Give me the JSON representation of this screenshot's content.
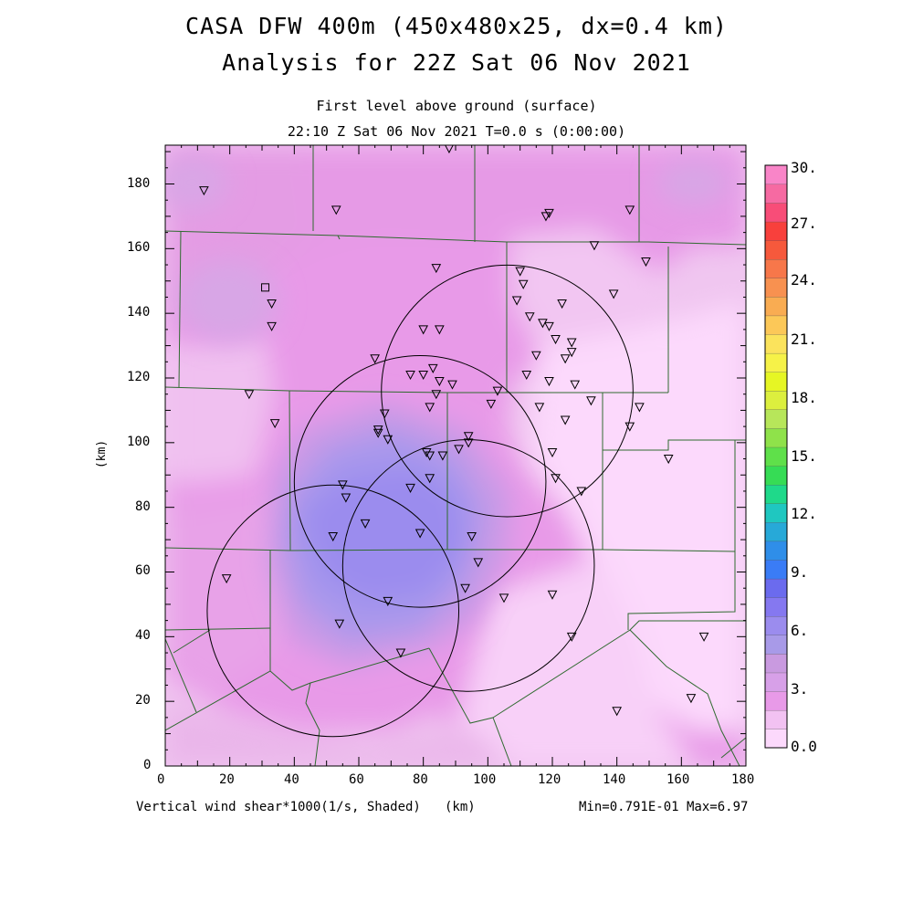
{
  "header": {
    "title_line1": "CASA DFW 400m (450x480x25, dx=0.4 km)",
    "title_line2": "Analysis for 22Z Sat 06 Nov 2021",
    "level": "First level above ground (surface)",
    "time": "22:10 Z Sat 06 Nov 2021   T=0.0 s (0:00:00)"
  },
  "axes": {
    "x_ticks": [
      "0",
      "20",
      "40",
      "60",
      "80",
      "100",
      "120",
      "140",
      "160",
      "180"
    ],
    "y_ticks": [
      "0",
      "20",
      "40",
      "60",
      "80",
      "100",
      "120",
      "140",
      "160",
      "180"
    ],
    "y_label": "(km)",
    "x_label": "(km)",
    "xlim": [
      0,
      180
    ],
    "ylim": [
      0,
      192
    ]
  },
  "footer": {
    "field_label": "Vertical wind shear*1000(1/s, Shaded)",
    "x_unit": "(km)",
    "minmax": "Min=0.791E-01 Max=6.97"
  },
  "colorbar": {
    "labels": [
      "30.",
      "27.",
      "24.",
      "21.",
      "18.",
      "15.",
      "12.",
      "9.",
      "6.",
      "3.",
      "0.0"
    ],
    "colors": [
      "#fcd9fc",
      "#f2c2f2",
      "#e89ae8",
      "#d7a0e8",
      "#c99ae0",
      "#a89ae8",
      "#9b8cee",
      "#8578f0",
      "#6b6bee",
      "#3a7cf6",
      "#2f8ee9",
      "#27a9d8",
      "#1fc7c0",
      "#1fd98a",
      "#36dc55",
      "#5fe04a",
      "#8fe24a",
      "#b7e65a",
      "#dcef3e",
      "#e6f624",
      "#f6f248",
      "#fbe35c",
      "#fcc858",
      "#f9ac52",
      "#f89150",
      "#f7774a",
      "#f6593c",
      "#f8403c",
      "#f84d78",
      "#f66aa2",
      "#f985c8"
    ]
  },
  "chart_data": {
    "type": "heatmap",
    "field": "Vertical wind shear*1000",
    "units": "1/s",
    "min": 0.0791,
    "max": 6.97,
    "xlim": [
      0,
      180
    ],
    "ylim": [
      0,
      192
    ],
    "radar_rings": [
      {
        "center": [
          106,
          116
        ],
        "radius": 39
      },
      {
        "center": [
          79,
          88
        ],
        "radius": 39
      },
      {
        "center": [
          94,
          62
        ],
        "radius": 39
      },
      {
        "center": [
          52,
          48
        ],
        "radius": 39
      }
    ],
    "stations": [
      [
        12,
        178
      ],
      [
        53,
        172
      ],
      [
        88,
        191
      ],
      [
        118,
        170
      ],
      [
        119,
        171
      ],
      [
        133,
        161
      ],
      [
        144,
        172
      ],
      [
        149,
        156
      ],
      [
        84,
        154
      ],
      [
        110,
        153
      ],
      [
        111,
        149
      ],
      [
        139,
        146
      ],
      [
        109,
        144
      ],
      [
        33,
        143
      ],
      [
        113,
        139
      ],
      [
        123,
        143
      ],
      [
        117,
        137
      ],
      [
        33,
        136
      ],
      [
        80,
        135
      ],
      [
        85,
        135
      ],
      [
        119,
        136
      ],
      [
        121,
        132
      ],
      [
        126,
        131
      ],
      [
        115,
        127
      ],
      [
        65,
        126
      ],
      [
        124,
        126
      ],
      [
        126,
        128
      ],
      [
        76,
        121
      ],
      [
        80,
        121
      ],
      [
        83,
        123
      ],
      [
        85,
        119
      ],
      [
        89,
        118
      ],
      [
        112,
        121
      ],
      [
        119,
        119
      ],
      [
        127,
        118
      ],
      [
        84,
        115
      ],
      [
        103,
        116
      ],
      [
        26,
        115
      ],
      [
        82,
        111
      ],
      [
        101,
        112
      ],
      [
        116,
        111
      ],
      [
        132,
        113
      ],
      [
        147,
        111
      ],
      [
        34,
        106
      ],
      [
        68,
        109
      ],
      [
        124,
        107
      ],
      [
        144,
        105
      ],
      [
        66,
        104
      ],
      [
        66,
        103
      ],
      [
        94,
        102
      ],
      [
        69,
        101
      ],
      [
        94,
        100
      ],
      [
        91,
        98
      ],
      [
        81,
        97
      ],
      [
        82,
        96
      ],
      [
        86,
        96
      ],
      [
        120,
        97
      ],
      [
        156,
        95
      ],
      [
        82,
        89
      ],
      [
        121,
        89
      ],
      [
        76,
        86
      ],
      [
        129,
        85
      ],
      [
        55,
        87
      ],
      [
        56,
        83
      ],
      [
        62,
        75
      ],
      [
        52,
        71
      ],
      [
        79,
        72
      ],
      [
        95,
        71
      ],
      [
        97,
        63
      ],
      [
        19,
        58
      ],
      [
        93,
        55
      ],
      [
        105,
        52
      ],
      [
        120,
        53
      ],
      [
        69,
        51
      ],
      [
        54,
        44
      ],
      [
        126,
        40
      ],
      [
        73,
        35
      ],
      [
        167,
        40
      ],
      [
        140,
        17
      ],
      [
        163,
        21
      ],
      [
        31,
        148
      ]
    ]
  }
}
